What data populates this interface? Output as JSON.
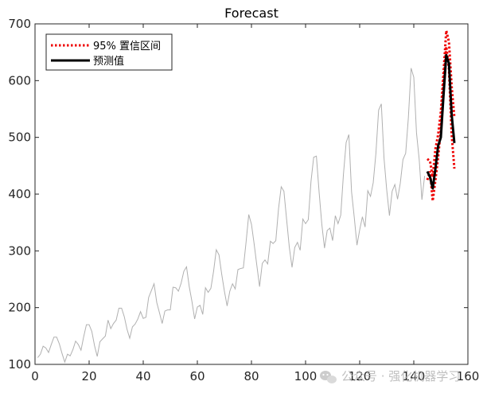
{
  "chart_data": {
    "type": "line",
    "title": "Forecast",
    "xlabel": "",
    "ylabel": "",
    "xlim": [
      0,
      160
    ],
    "ylim": [
      100,
      700
    ],
    "xticks": [
      0,
      20,
      40,
      60,
      80,
      100,
      120,
      140,
      160
    ],
    "yticks": [
      100,
      200,
      300,
      400,
      500,
      600,
      700
    ],
    "grid": false,
    "legend_position": "top-left",
    "series": [
      {
        "role": "history",
        "color": "#b0b0b0",
        "style": "solid",
        "x_start": 1,
        "values": [
          112,
          118,
          132,
          129,
          121,
          135,
          148,
          148,
          136,
          119,
          104,
          118,
          115,
          126,
          141,
          135,
          125,
          149,
          170,
          170,
          158,
          133,
          114,
          140,
          145,
          150,
          178,
          163,
          172,
          178,
          199,
          199,
          184,
          162,
          146,
          166,
          171,
          180,
          193,
          181,
          183,
          218,
          230,
          242,
          209,
          191,
          172,
          194,
          196,
          196,
          236,
          235,
          229,
          243,
          264,
          272,
          237,
          211,
          180,
          201,
          204,
          188,
          235,
          227,
          234,
          264,
          302,
          293,
          259,
          229,
          203,
          229,
          242,
          233,
          267,
          269,
          270,
          315,
          364,
          347,
          312,
          274,
          237,
          278,
          284,
          277,
          317,
          313,
          318,
          374,
          413,
          405,
          355,
          306,
          271,
          306,
          315,
          301,
          356,
          348,
          355,
          422,
          465,
          467,
          404,
          347,
          305,
          336,
          340,
          318,
          362,
          348,
          363,
          435,
          491,
          505,
          404,
          359,
          310,
          337,
          360,
          342,
          406,
          396,
          420,
          472,
          548,
          559,
          463,
          407,
          362,
          405,
          417,
          391,
          419,
          461,
          472,
          535,
          622,
          606,
          508,
          461,
          390,
          432
        ]
      },
      {
        "name": "95% 置信区间",
        "role": "upper_bound",
        "color": "#ee0000",
        "style": "dotted",
        "x_start": 145,
        "values": [
          462,
          458,
          430,
          480,
          505,
          545,
          615,
          688,
          668,
          590,
          535
        ]
      },
      {
        "name": "95% 置信区间",
        "role": "lower_bound",
        "color": "#ee0000",
        "style": "dotted",
        "x_start": 145,
        "values": [
          425,
          440,
          388,
          425,
          465,
          515,
          595,
          660,
          620,
          505,
          445
        ]
      },
      {
        "name": "预测值",
        "role": "forecast",
        "color": "#000000",
        "style": "solid",
        "x_start": 145,
        "values": [
          440,
          430,
          410,
          445,
          485,
          500,
          575,
          645,
          630,
          540,
          490
        ]
      }
    ]
  },
  "legend": {
    "items": [
      {
        "label": "95% 置信区间",
        "color": "#ee0000",
        "style": "dotted"
      },
      {
        "label": "预测值",
        "color": "#000000",
        "style": "solid"
      }
    ]
  },
  "watermark": {
    "text": "公众号 · 强化机器学习"
  }
}
